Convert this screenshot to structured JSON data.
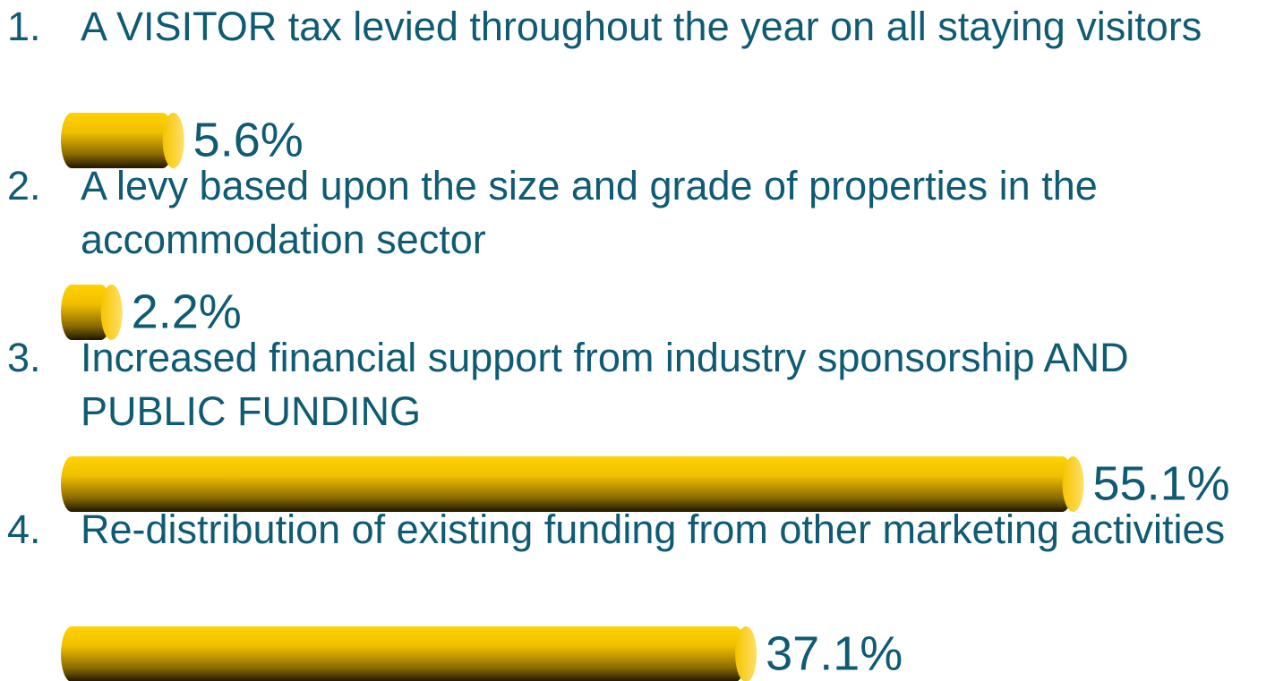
{
  "chart_data": {
    "type": "bar",
    "item_numbers": [
      "1.",
      "2.",
      "3.",
      "4."
    ],
    "categories": [
      "A VISITOR tax levied throughout the year on all staying visitors",
      "A levy based upon the size and grade of properties in the accommodation sector",
      "Increased financial support from industry sponsorship AND PUBLIC FUNDING",
      "Re-distribution of existing funding from other marketing activities"
    ],
    "values": [
      5.6,
      2.2,
      55.1,
      37.1
    ],
    "value_labels": [
      "5.6%",
      "2.2%",
      "55.1%",
      "37.1%"
    ],
    "color": "#ffcc00"
  }
}
